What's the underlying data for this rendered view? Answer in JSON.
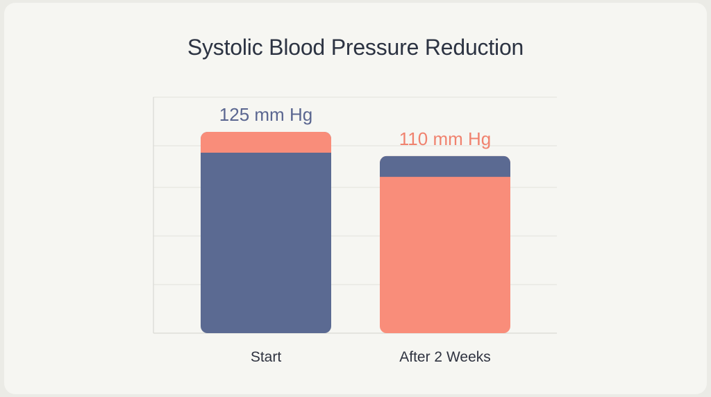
{
  "chart_data": {
    "type": "bar",
    "title": "Systolic Blood Pressure Reduction",
    "xlabel": "",
    "ylabel": "",
    "categories": [
      "Start",
      "After 2 Weeks"
    ],
    "values": [
      125,
      110
    ],
    "value_labels": [
      "125 mm Hg",
      "110 mm Hg"
    ],
    "ylim": [
      0,
      140
    ],
    "grid": true,
    "legend": "none",
    "colors": {
      "primary": "#5b6a92",
      "accent": "#f98d7a",
      "label_primary": "#5a6690",
      "label_accent": "#f0826e",
      "title": "#2c3342",
      "axis_text": "#2f3340",
      "grid": "#e1e1dc"
    }
  }
}
